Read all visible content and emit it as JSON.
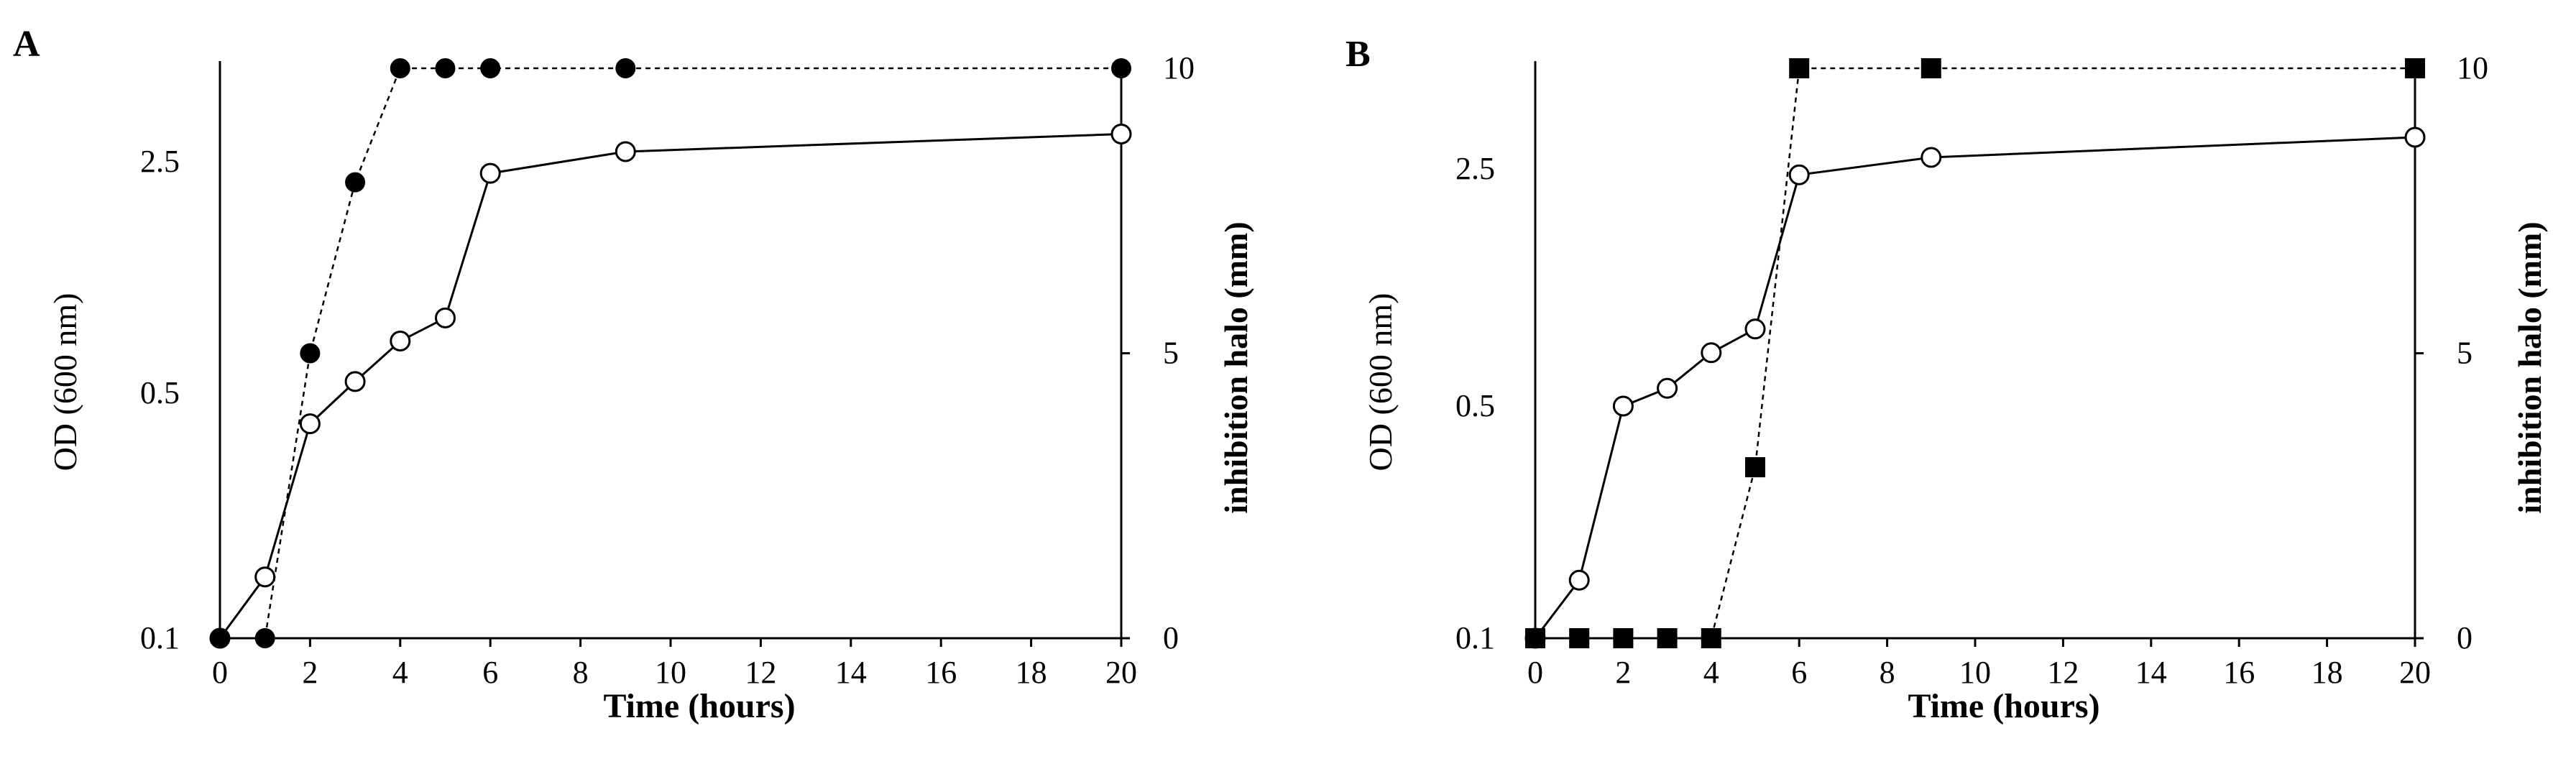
{
  "figure": {
    "panels": [
      "A",
      "B"
    ]
  },
  "chart_data": [
    {
      "panel_label": "A",
      "type": "line",
      "xlabel": "Time (hours)",
      "ylabel": "OD (600 nm)",
      "ylabel_right": "inhibition  halo (mm)",
      "xlim": [
        0,
        20
      ],
      "xticks": [
        "0",
        "2",
        "4",
        "6",
        "8",
        "10",
        "12",
        "14",
        "16",
        "18",
        "20"
      ],
      "yticks_left": [
        "0.1",
        "0.5",
        "2.5"
      ],
      "yticks_right": [
        "0",
        "5",
        "10"
      ],
      "ylim_right": [
        0,
        10
      ],
      "grid": false,
      "series": [
        {
          "marker": "circle-open",
          "line": "solid",
          "axis": "left",
          "x": [
            0,
            1,
            2,
            3,
            4,
            5,
            6,
            9,
            20
          ],
          "y": [
            0.1,
            0.2,
            0.45,
            0.6,
            0.95,
            1.15,
            2.4,
            2.7,
            3.05
          ]
        },
        {
          "marker": "circle-filled",
          "line": "dashed",
          "axis": "right",
          "x": [
            0,
            1,
            2,
            3,
            4,
            5,
            6,
            9,
            20
          ],
          "y": [
            0,
            0,
            5,
            8,
            10,
            10,
            10,
            10,
            10
          ]
        }
      ]
    },
    {
      "panel_label": "B",
      "type": "line",
      "xlabel": "Time (hours)",
      "ylabel": "OD (600 nm)",
      "ylabel_right": "inhibition  halo (mm)",
      "xlim": [
        0,
        20
      ],
      "xticks": [
        "0",
        "2",
        "4",
        "6",
        "8",
        "10",
        "12",
        "14",
        "16",
        "18",
        "20"
      ],
      "yticks_left": [
        "0.1",
        "0.5",
        "2.5"
      ],
      "yticks_right": [
        "0",
        "5",
        "10"
      ],
      "ylim_right": [
        0,
        10
      ],
      "grid": false,
      "series": [
        {
          "marker": "circle-open",
          "line": "solid",
          "axis": "left",
          "x": [
            0,
            1,
            2,
            3,
            4,
            5,
            6,
            9,
            20
          ],
          "y": [
            0.1,
            0.2,
            0.5,
            0.65,
            0.95,
            1.15,
            2.45,
            2.7,
            3.05
          ]
        },
        {
          "marker": "square-filled",
          "line": "dashed",
          "axis": "right",
          "x": [
            0,
            1,
            2,
            3,
            4,
            5,
            6,
            9,
            20
          ],
          "y": [
            0,
            0,
            0,
            0,
            0,
            3,
            10,
            10,
            10
          ]
        }
      ]
    }
  ]
}
